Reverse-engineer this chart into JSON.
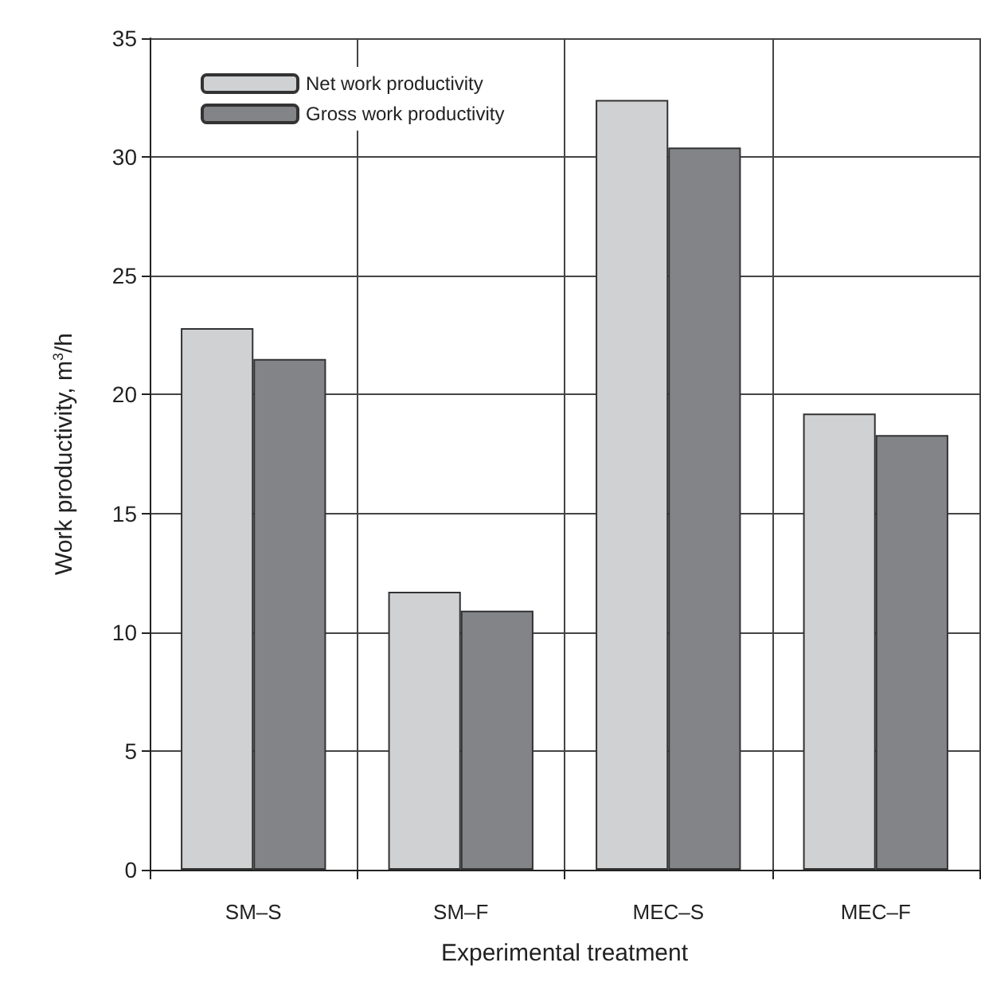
{
  "chart_data": {
    "type": "bar",
    "xlabel": "Experimental treatment",
    "ylabel": "Work productivity, m$^{3}$/h",
    "categories": [
      "SM–S",
      "SM–F",
      "MEC–S",
      "MEC–F"
    ],
    "series": [
      {
        "name": "Net work productivity",
        "color": "#d0d1d3",
        "values": [
          22.8,
          11.7,
          32.4,
          19.2
        ]
      },
      {
        "name": "Gross work productivity",
        "color": "#838488",
        "values": [
          21.5,
          10.9,
          30.4,
          18.3
        ]
      }
    ],
    "ylim": [
      0,
      35
    ],
    "yticks": [
      0,
      5,
      10,
      15,
      20,
      25,
      30,
      35
    ],
    "grid": true,
    "legend": "top left"
  }
}
